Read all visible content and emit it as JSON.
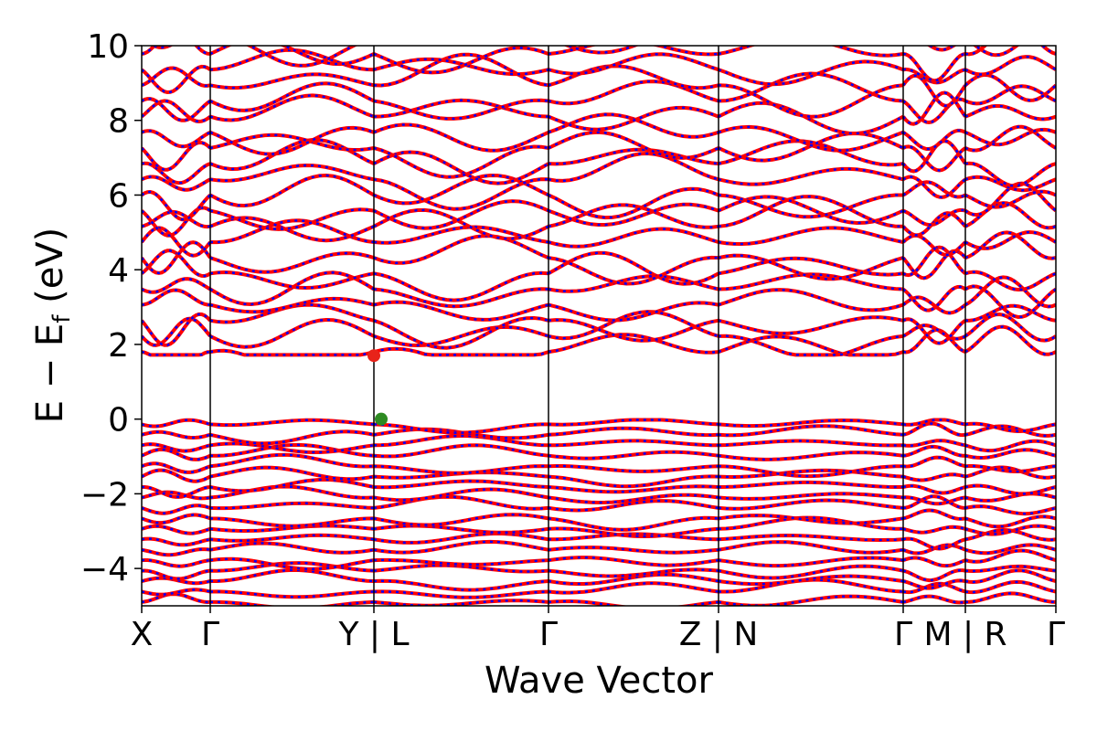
{
  "chart_data": {
    "type": "line",
    "title": "",
    "xlabel": "Wave Vector",
    "ylabel_main": "E − E",
    "ylabel_sub": "f",
    "ylabel_unit": " (eV)",
    "ylim": [
      -5,
      10
    ],
    "yticks": [
      -4,
      -2,
      0,
      2,
      4,
      6,
      8,
      10
    ],
    "ytick_labels": [
      "−4",
      "−2",
      "0",
      "2",
      "4",
      "6",
      "8",
      "10"
    ],
    "grid": false,
    "kpath_labels": [
      "X",
      "Γ",
      "Y | L",
      "Γ",
      "Z | N",
      "Γ",
      "M | R",
      "Γ"
    ],
    "kpath_positions": [
      0.0,
      0.075,
      0.254,
      0.445,
      0.631,
      0.833,
      0.901,
      1.0
    ],
    "series": [
      {
        "style": "solid",
        "color": "#ff0000"
      },
      {
        "style": "dotted",
        "color": "#0000ff"
      }
    ],
    "band_minimum_energies_at_gamma": [
      1.8,
      -0.38
    ],
    "conduction_band_minimum": {
      "x": 0.254,
      "energy": 1.7,
      "color": "#e8231a"
    },
    "valence_band_maximum": {
      "x": 0.262,
      "energy": 0.0,
      "color": "#2e8b22"
    }
  }
}
